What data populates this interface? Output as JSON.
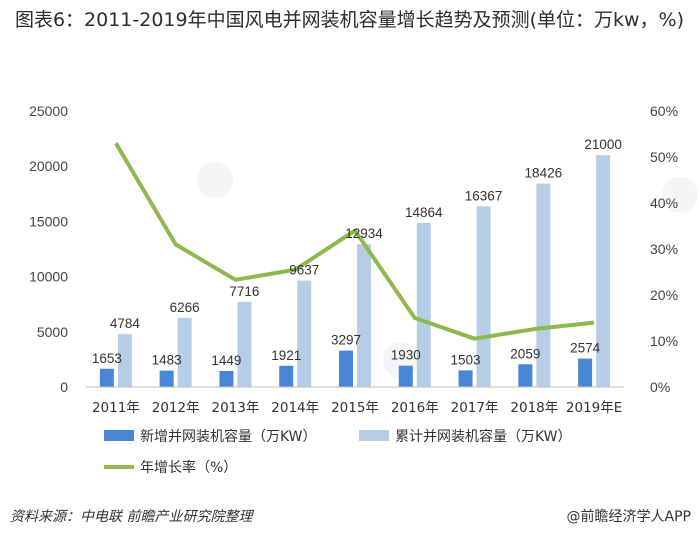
{
  "title": "图表6：2011-2019年中国风电并网装机容量增长趋势及预测(单位：万kw，%)",
  "chart_data": {
    "type": "bar",
    "categories": [
      "2011年",
      "2012年",
      "2013年",
      "2014年",
      "2015年",
      "2016年",
      "2017年",
      "2018年",
      "2019年E"
    ],
    "series": [
      {
        "name": "新增并网装机容量（万KW）",
        "type": "bar",
        "axis": "left",
        "color": "#4a86d6",
        "values": [
          1653,
          1483,
          1449,
          1921,
          3297,
          1930,
          1503,
          2059,
          2574
        ]
      },
      {
        "name": "累计并网装机容量（万KW）",
        "type": "bar",
        "axis": "left",
        "color": "#b7cde6",
        "values": [
          4784,
          6266,
          7716,
          9637,
          12934,
          14864,
          16367,
          18426,
          21000
        ]
      },
      {
        "name": "年增长率（%）",
        "type": "line",
        "axis": "right",
        "color": "#8db94f",
        "values": [
          53.0,
          31.0,
          23.3,
          25.5,
          34.0,
          15.0,
          10.5,
          12.6,
          14.0
        ]
      }
    ],
    "left_axis": {
      "min": 0,
      "max": 25000,
      "ticks": [
        "0",
        "5000",
        "10000",
        "15000",
        "20000",
        "25000"
      ]
    },
    "right_axis": {
      "min": 0,
      "max": 60,
      "ticks": [
        "0%",
        "10%",
        "20%",
        "30%",
        "40%",
        "50%",
        "60%"
      ]
    },
    "grid": false,
    "legend_position": "bottom"
  },
  "source": "资料来源：中电联 前瞻产业研究院整理",
  "brand": "@前瞻经济学人APP"
}
